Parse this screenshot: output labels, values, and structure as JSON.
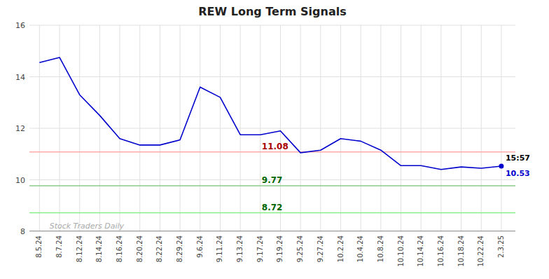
{
  "chart_data": {
    "type": "line",
    "title": "REW Long Term Signals",
    "categories": [
      "8.5.24",
      "8.7.24",
      "8.12.24",
      "8.14.24",
      "8.16.24",
      "8.20.24",
      "8.22.24",
      "8.29.24",
      "9.6.24",
      "9.11.24",
      "9.13.24",
      "9.17.24",
      "9.19.24",
      "9.25.24",
      "9.27.24",
      "10.2.24",
      "10.4.24",
      "10.8.24",
      "10.10.24",
      "10.14.24",
      "10.16.24",
      "10.18.24",
      "10.22.24",
      "2.3.25"
    ],
    "values": [
      14.55,
      14.75,
      13.3,
      12.5,
      11.6,
      11.35,
      11.35,
      11.55,
      13.6,
      13.2,
      11.75,
      11.75,
      11.9,
      11.05,
      11.15,
      11.6,
      11.5,
      11.15,
      10.55,
      10.55,
      10.4,
      10.5,
      10.45,
      10.53
    ],
    "color": "#0000cc",
    "ylim": [
      8.0,
      16.0
    ],
    "yticks": [
      8,
      10,
      12,
      14,
      16
    ],
    "grid": true,
    "reference_lines": [
      {
        "value": 11.08,
        "label": "11.08",
        "color": "#ffaaaa",
        "label_color": "#aa0000"
      },
      {
        "value": 9.77,
        "label": "9.77",
        "color": "#88cc88",
        "label_color": "#006600"
      },
      {
        "value": 8.72,
        "label": "8.72",
        "color": "#88ee88",
        "label_color": "#006600"
      },
      {
        "value": 8.0,
        "color": "#777777"
      }
    ],
    "annotations": [
      {
        "text": "Stock Traders Daily",
        "color": "#aaaaaa"
      },
      {
        "text": "15:57",
        "color": "#000000"
      },
      {
        "text": "10.53",
        "color": "#0000cc"
      }
    ]
  }
}
